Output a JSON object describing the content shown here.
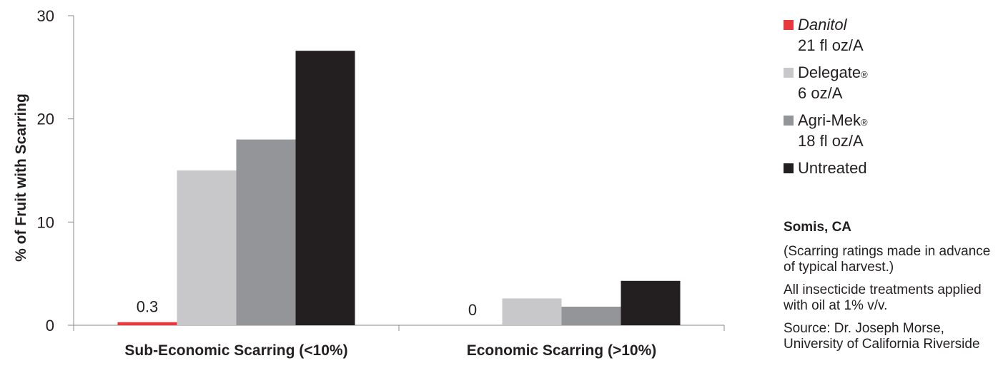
{
  "chart_data": {
    "type": "bar",
    "ylabel": "% of Fruit with Scarring",
    "ylim": [
      0,
      30
    ],
    "yticks": [
      "0",
      "10",
      "20",
      "30"
    ],
    "categories": [
      "Sub-Economic Scarring (<10%)",
      "Economic Scarring (>10%)"
    ],
    "series": [
      {
        "name": "Danitol",
        "rate": "21 fl oz/A",
        "reg": "",
        "color": "#e8383d",
        "values": [
          0.3,
          0
        ]
      },
      {
        "name": "Delegate",
        "rate": "6 oz/A",
        "reg": "®",
        "color": "#c8c8ca",
        "values": [
          15,
          2.6
        ]
      },
      {
        "name": "Agri-Mek",
        "rate": "18 fl oz/A",
        "reg": "®",
        "color": "#939598",
        "values": [
          18,
          1.8
        ]
      },
      {
        "name": "Untreated",
        "rate": "",
        "reg": "",
        "color": "#231f20",
        "values": [
          26.6,
          4.3
        ]
      }
    ],
    "data_labels": [
      {
        "series": 0,
        "category": 0,
        "text": "0.3"
      },
      {
        "series": 0,
        "category": 1,
        "text": "0"
      }
    ],
    "grid": false,
    "legend": "right"
  },
  "notes": {
    "location": "Somis, CA",
    "lines": [
      "(Scarring ratings made in advance of typical harvest.)",
      "All insecticide treatments applied with oil at 1% v/v.",
      "Source: Dr. Joseph Morse, University of California Riverside"
    ]
  }
}
